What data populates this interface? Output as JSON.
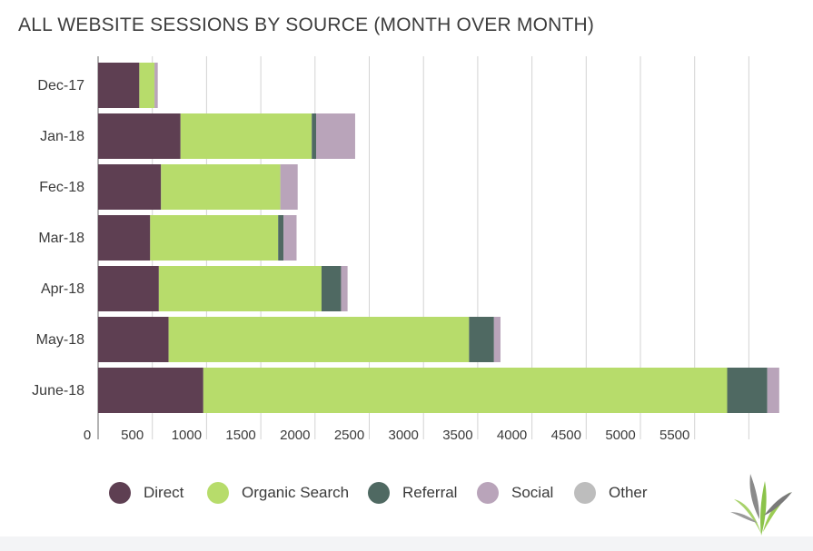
{
  "chart_data": {
    "type": "bar",
    "orientation": "horizontal",
    "stacked": true,
    "title": "ALL WEBSITE SESSIONS BY SOURCE (MONTH OVER MONTH)",
    "categories": [
      "Dec-17",
      "Jan-18",
      "Fec-18",
      "Mar-18",
      "Apr-18",
      "May-18",
      "June-18"
    ],
    "series": [
      {
        "name": "Direct",
        "color": "#5e3f52",
        "values": [
          380,
          760,
          580,
          480,
          560,
          650,
          970
        ]
      },
      {
        "name": "Organic Search",
        "color": "#b7dc6b",
        "values": [
          140,
          1210,
          1100,
          1180,
          1500,
          2770,
          4830
        ]
      },
      {
        "name": "Referral",
        "color": "#4f6962",
        "values": [
          0,
          40,
          0,
          50,
          180,
          230,
          370
        ]
      },
      {
        "name": "Social",
        "color": "#b9a4ba",
        "values": [
          30,
          360,
          160,
          120,
          60,
          60,
          110
        ]
      },
      {
        "name": "Other",
        "color": "#bdbdbd",
        "values": [
          0,
          0,
          0,
          0,
          0,
          0,
          0
        ]
      }
    ],
    "x_ticks": [
      "0",
      "500",
      "1000",
      "1500",
      "2000",
      "2500",
      "3000",
      "3500",
      "4000",
      "4500",
      "5000",
      "5500"
    ],
    "xlim": [
      0,
      6500
    ],
    "grid": true,
    "legend_position": "bottom"
  },
  "logo": {
    "name": "leaf-logo-icon"
  }
}
